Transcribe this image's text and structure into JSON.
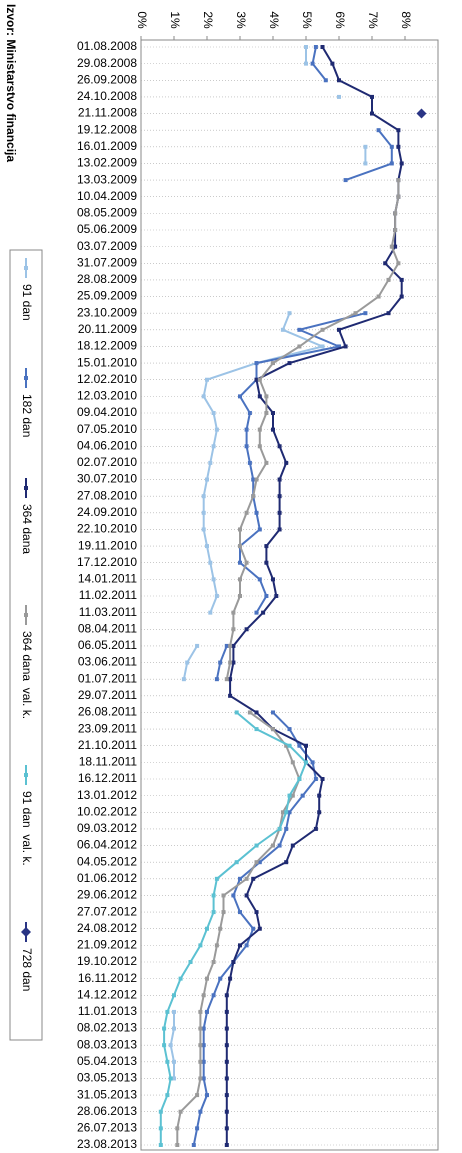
{
  "chart_data": {
    "type": "line",
    "source": "Izvor: Ministarstvo financija",
    "categories": [
      "01.08.2008",
      "29.08.2008",
      "26.09.2008",
      "24.10.2008",
      "21.11.2008",
      "19.12.2008",
      "16.01.2009",
      "13.02.2009",
      "13.03.2009",
      "10.04.2009",
      "08.05.2009",
      "05.06.2009",
      "03.07.2009",
      "31.07.2009",
      "28.08.2009",
      "25.09.2009",
      "23.10.2009",
      "20.11.2009",
      "18.12.2009",
      "15.01.2010",
      "12.02.2010",
      "12.03.2010",
      "09.04.2010",
      "07.05.2010",
      "04.06.2010",
      "02.07.2010",
      "30.07.2010",
      "27.08.2010",
      "24.09.2010",
      "22.10.2010",
      "19.11.2010",
      "17.12.2010",
      "14.01.2011",
      "11.02.2011",
      "11.03.2011",
      "08.04.2011",
      "06.05.2011",
      "03.06.2011",
      "01.07.2011",
      "29.07.2011",
      "26.08.2011",
      "23.09.2011",
      "21.10.2011",
      "18.11.2011",
      "16.12.2011",
      "13.01.2012",
      "10.02.2012",
      "09.03.2012",
      "06.04.2012",
      "04.05.2012",
      "01.06.2012",
      "29.06.2012",
      "27.07.2012",
      "24.08.2012",
      "21.09.2012",
      "19.10.2012",
      "16.11.2012",
      "14.12.2012",
      "11.01.2013",
      "08.02.2013",
      "08.03.2013",
      "05.04.2013",
      "03.05.2013",
      "31.05.2013",
      "28.06.2013",
      "26.07.2013",
      "23.08.2013"
    ],
    "ylim": [
      0,
      9
    ],
    "yticks": [
      {
        "value": 0,
        "label": "0%"
      },
      {
        "value": 1,
        "label": "1%"
      },
      {
        "value": 2,
        "label": "2%"
      },
      {
        "value": 3,
        "label": "3%"
      },
      {
        "value": 4,
        "label": "4%"
      },
      {
        "value": 5,
        "label": "5%"
      },
      {
        "value": 6,
        "label": "6%"
      },
      {
        "value": 7,
        "label": "7%"
      },
      {
        "value": 8,
        "label": "8%"
      }
    ],
    "grid": true,
    "series": [
      {
        "name": "91 dan",
        "color": "#9cc3e6",
        "values": [
          5.0,
          5.0,
          null,
          6.0,
          null,
          null,
          6.8,
          6.8,
          null,
          null,
          null,
          null,
          null,
          null,
          null,
          null,
          4.5,
          4.3,
          5.5,
          3.5,
          2.0,
          1.9,
          2.2,
          2.3,
          2.2,
          2.1,
          2.0,
          1.9,
          1.9,
          1.9,
          2.0,
          2.1,
          2.2,
          2.3,
          2.1,
          null,
          1.7,
          1.4,
          1.3,
          null,
          null,
          null,
          null,
          null,
          null,
          null,
          null,
          null,
          null,
          null,
          null,
          null,
          null,
          null,
          null,
          null,
          null,
          null,
          1.0,
          1.0,
          0.9,
          1.0,
          1.0,
          null,
          null,
          null,
          null
        ]
      },
      {
        "name": "182 dan",
        "color": "#4a72c0",
        "values": [
          5.3,
          5.2,
          5.6,
          null,
          null,
          7.2,
          7.6,
          7.6,
          6.2,
          null,
          null,
          null,
          null,
          null,
          null,
          null,
          6.8,
          4.8,
          6.0,
          3.5,
          3.5,
          3.0,
          3.3,
          3.2,
          3.2,
          3.3,
          3.4,
          3.4,
          3.5,
          3.6,
          3.0,
          3.0,
          3.6,
          3.8,
          3.5,
          null,
          2.6,
          2.4,
          2.3,
          null,
          4.0,
          4.5,
          4.8,
          5.2,
          5.3,
          4.9,
          4.5,
          4.4,
          4.2,
          3.6,
          3.0,
          2.8,
          3.0,
          3.4,
          3.2,
          2.8,
          2.4,
          2.2,
          2.0,
          1.9,
          1.9,
          1.9,
          1.9,
          2.0,
          1.8,
          1.7,
          1.6
        ]
      },
      {
        "name": "364 dana",
        "color": "#1f2a72",
        "values": [
          5.5,
          5.8,
          6.0,
          7.0,
          7.0,
          7.8,
          7.8,
          7.9,
          7.8,
          7.8,
          7.7,
          7.7,
          7.7,
          7.4,
          7.9,
          7.9,
          7.5,
          6.0,
          6.2,
          4.5,
          3.5,
          3.6,
          4.0,
          4.0,
          4.2,
          4.4,
          4.2,
          4.2,
          4.2,
          4.2,
          3.8,
          3.8,
          4.0,
          4.1,
          3.7,
          3.2,
          2.8,
          2.8,
          2.7,
          2.7,
          3.5,
          4.0,
          5.0,
          5.0,
          5.5,
          5.4,
          5.4,
          5.3,
          4.6,
          4.4,
          3.4,
          3.2,
          3.5,
          3.6,
          3.0,
          2.8,
          2.7,
          2.6,
          2.6,
          2.6,
          2.6,
          2.6,
          2.6,
          2.6,
          2.6,
          2.6,
          2.6
        ]
      },
      {
        "name": "364 dana  val. k.",
        "color": "#9a9a9a",
        "values": [
          null,
          null,
          null,
          null,
          null,
          null,
          null,
          null,
          7.8,
          7.8,
          7.7,
          7.7,
          7.6,
          7.8,
          7.5,
          7.2,
          6.5,
          5.5,
          4.8,
          4.0,
          3.6,
          3.8,
          3.8,
          3.6,
          3.6,
          3.8,
          3.5,
          3.4,
          3.2,
          3.0,
          3.0,
          3.2,
          3.0,
          3.0,
          2.8,
          2.8,
          2.7,
          2.7,
          2.6,
          null,
          3.3,
          4.0,
          4.4,
          4.6,
          4.8,
          4.6,
          4.3,
          4.2,
          4.0,
          3.5,
          3.2,
          2.5,
          2.5,
          2.4,
          2.3,
          2.2,
          2.0,
          1.9,
          1.8,
          1.8,
          1.8,
          1.8,
          1.8,
          1.7,
          1.2,
          1.1,
          1.1
        ]
      },
      {
        "name": "91 dan  val. k.",
        "color": "#5bc1d2",
        "values": [
          null,
          null,
          null,
          null,
          null,
          null,
          null,
          null,
          null,
          null,
          null,
          null,
          null,
          null,
          null,
          null,
          null,
          null,
          null,
          null,
          null,
          null,
          null,
          null,
          null,
          null,
          null,
          null,
          null,
          null,
          null,
          null,
          null,
          null,
          null,
          null,
          null,
          null,
          null,
          null,
          2.9,
          3.5,
          4.5,
          5.0,
          4.8,
          4.5,
          4.4,
          4.2,
          3.5,
          2.9,
          2.3,
          2.2,
          2.2,
          2.0,
          1.8,
          1.5,
          1.2,
          1.0,
          0.8,
          0.7,
          0.7,
          0.8,
          0.9,
          0.8,
          0.6,
          0.6,
          0.6
        ]
      },
      {
        "name": "728 dan",
        "color": "#2a3585",
        "values": [
          null,
          null,
          null,
          null,
          8.5,
          null,
          null,
          null,
          null,
          null,
          null,
          null,
          null,
          null,
          null,
          null,
          null,
          null,
          null,
          null,
          null,
          null,
          null,
          null,
          null,
          null,
          null,
          null,
          null,
          null,
          null,
          null,
          null,
          null,
          null,
          null,
          null,
          null,
          null,
          null,
          null,
          null,
          null,
          null,
          null,
          null,
          null,
          null,
          null,
          null,
          null,
          null,
          null,
          null,
          null,
          null,
          null,
          null,
          null,
          null,
          null,
          null,
          null,
          null,
          null,
          null,
          null
        ]
      }
    ]
  }
}
